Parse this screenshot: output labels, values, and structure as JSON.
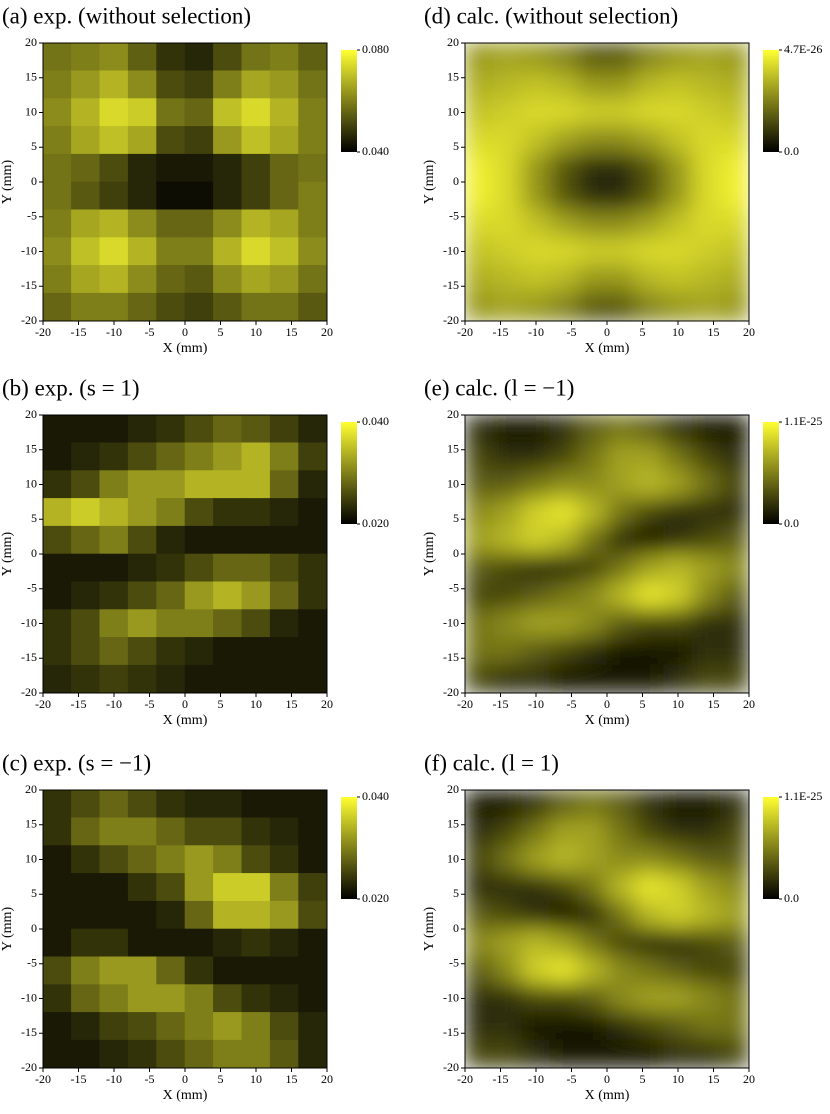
{
  "chart_data": [
    {
      "type": "heatmap",
      "title": "(a) exp. (without selection)",
      "xlabel": "X (mm)",
      "ylabel": "Y (mm)",
      "xlim": [
        -20,
        20
      ],
      "ylim": [
        -20,
        20
      ],
      "xticks": [
        -20,
        -15,
        -10,
        -5,
        0,
        5,
        10,
        15,
        20
      ],
      "yticks": [
        -20,
        -15,
        -10,
        -5,
        0,
        5,
        10,
        15,
        20
      ],
      "zlim": [
        0.04,
        0.08
      ],
      "zticks": [
        {
          "value": 0.04,
          "label": "0.040"
        },
        {
          "value": 0.08,
          "label": "0.080"
        }
      ],
      "colors": [
        "#000000",
        "#ffff33"
      ],
      "smooth": false,
      "z": [
        [
          0.058,
          0.06,
          0.062,
          0.055,
          0.048,
          0.046,
          0.052,
          0.058,
          0.06,
          0.055
        ],
        [
          0.06,
          0.064,
          0.068,
          0.062,
          0.052,
          0.05,
          0.06,
          0.066,
          0.064,
          0.058
        ],
        [
          0.062,
          0.068,
          0.074,
          0.072,
          0.058,
          0.056,
          0.07,
          0.074,
          0.068,
          0.06
        ],
        [
          0.06,
          0.066,
          0.07,
          0.066,
          0.052,
          0.05,
          0.064,
          0.07,
          0.066,
          0.06
        ],
        [
          0.058,
          0.056,
          0.052,
          0.046,
          0.044,
          0.044,
          0.046,
          0.05,
          0.056,
          0.058
        ],
        [
          0.058,
          0.054,
          0.05,
          0.046,
          0.042,
          0.042,
          0.046,
          0.05,
          0.056,
          0.06
        ],
        [
          0.06,
          0.066,
          0.068,
          0.062,
          0.056,
          0.056,
          0.062,
          0.068,
          0.066,
          0.06
        ],
        [
          0.062,
          0.07,
          0.074,
          0.068,
          0.06,
          0.06,
          0.068,
          0.074,
          0.07,
          0.062
        ],
        [
          0.06,
          0.066,
          0.068,
          0.062,
          0.056,
          0.054,
          0.062,
          0.066,
          0.064,
          0.058
        ],
        [
          0.056,
          0.06,
          0.06,
          0.056,
          0.052,
          0.05,
          0.054,
          0.058,
          0.058,
          0.054
        ]
      ]
    },
    {
      "type": "heatmap",
      "title": "(b) exp. (s = 1)",
      "xlabel": "X (mm)",
      "ylabel": "Y (mm)",
      "xlim": [
        -20,
        20
      ],
      "ylim": [
        -20,
        20
      ],
      "xticks": [
        -20,
        -15,
        -10,
        -5,
        0,
        5,
        10,
        15,
        20
      ],
      "yticks": [
        -20,
        -15,
        -10,
        -5,
        0,
        5,
        10,
        15,
        20
      ],
      "zlim": [
        0.02,
        0.04
      ],
      "zticks": [
        {
          "value": 0.02,
          "label": "0.020"
        },
        {
          "value": 0.04,
          "label": "0.040"
        }
      ],
      "colors": [
        "#000000",
        "#ffff33"
      ],
      "smooth": false,
      "z": [
        [
          0.022,
          0.022,
          0.022,
          0.023,
          0.024,
          0.026,
          0.028,
          0.027,
          0.025,
          0.023
        ],
        [
          0.022,
          0.023,
          0.024,
          0.026,
          0.028,
          0.03,
          0.032,
          0.034,
          0.03,
          0.025
        ],
        [
          0.024,
          0.026,
          0.03,
          0.032,
          0.032,
          0.034,
          0.034,
          0.034,
          0.028,
          0.023
        ],
        [
          0.034,
          0.036,
          0.034,
          0.032,
          0.03,
          0.026,
          0.024,
          0.024,
          0.023,
          0.022
        ],
        [
          0.026,
          0.028,
          0.03,
          0.026,
          0.023,
          0.022,
          0.022,
          0.022,
          0.022,
          0.022
        ],
        [
          0.022,
          0.022,
          0.022,
          0.023,
          0.024,
          0.026,
          0.028,
          0.028,
          0.026,
          0.024
        ],
        [
          0.022,
          0.023,
          0.024,
          0.026,
          0.028,
          0.032,
          0.034,
          0.032,
          0.028,
          0.024
        ],
        [
          0.024,
          0.026,
          0.03,
          0.032,
          0.03,
          0.03,
          0.028,
          0.026,
          0.023,
          0.022
        ],
        [
          0.024,
          0.026,
          0.028,
          0.026,
          0.024,
          0.023,
          0.022,
          0.022,
          0.022,
          0.022
        ],
        [
          0.023,
          0.024,
          0.025,
          0.024,
          0.023,
          0.022,
          0.022,
          0.022,
          0.022,
          0.022
        ]
      ]
    },
    {
      "type": "heatmap",
      "title": "(c) exp. (s = −1)",
      "xlabel": "X (mm)",
      "ylabel": "Y (mm)",
      "xlim": [
        -20,
        20
      ],
      "ylim": [
        -20,
        20
      ],
      "xticks": [
        -20,
        -15,
        -10,
        -5,
        0,
        5,
        10,
        15,
        20
      ],
      "yticks": [
        -20,
        -15,
        -10,
        -5,
        0,
        5,
        10,
        15,
        20
      ],
      "zlim": [
        0.02,
        0.04
      ],
      "zticks": [
        {
          "value": 0.02,
          "label": "0.020"
        },
        {
          "value": 0.04,
          "label": "0.040"
        }
      ],
      "colors": [
        "#000000",
        "#ffff33"
      ],
      "smooth": false,
      "z": [
        [
          0.024,
          0.026,
          0.028,
          0.026,
          0.024,
          0.023,
          0.023,
          0.022,
          0.022,
          0.022
        ],
        [
          0.024,
          0.028,
          0.03,
          0.03,
          0.028,
          0.026,
          0.026,
          0.024,
          0.023,
          0.022
        ],
        [
          0.022,
          0.024,
          0.026,
          0.028,
          0.03,
          0.032,
          0.03,
          0.026,
          0.024,
          0.022
        ],
        [
          0.022,
          0.022,
          0.022,
          0.024,
          0.026,
          0.032,
          0.036,
          0.036,
          0.03,
          0.025
        ],
        [
          0.022,
          0.022,
          0.022,
          0.022,
          0.023,
          0.028,
          0.034,
          0.034,
          0.032,
          0.026
        ],
        [
          0.022,
          0.024,
          0.024,
          0.022,
          0.022,
          0.022,
          0.023,
          0.024,
          0.023,
          0.022
        ],
        [
          0.026,
          0.03,
          0.032,
          0.032,
          0.028,
          0.024,
          0.022,
          0.022,
          0.022,
          0.022
        ],
        [
          0.024,
          0.028,
          0.03,
          0.032,
          0.032,
          0.03,
          0.026,
          0.024,
          0.023,
          0.022
        ],
        [
          0.022,
          0.023,
          0.025,
          0.026,
          0.028,
          0.03,
          0.032,
          0.03,
          0.026,
          0.023
        ],
        [
          0.022,
          0.022,
          0.023,
          0.024,
          0.026,
          0.028,
          0.03,
          0.03,
          0.027,
          0.023
        ]
      ]
    },
    {
      "type": "heatmap",
      "title": "(d) calc. (without selection)",
      "xlabel": "X (mm)",
      "ylabel": "Y (mm)",
      "xlim": [
        -20,
        20
      ],
      "ylim": [
        -20,
        20
      ],
      "xticks": [
        -20,
        -15,
        -10,
        -5,
        0,
        5,
        10,
        15,
        20
      ],
      "yticks": [
        -20,
        -15,
        -10,
        -5,
        0,
        5,
        10,
        15,
        20
      ],
      "zlim": [
        0,
        4.7e-26
      ],
      "zticks": [
        {
          "value": 0,
          "label": "0.0"
        },
        {
          "value": 4.7e-26,
          "label": "4.7E-26"
        }
      ],
      "colors": [
        "#000000",
        "#ffff33"
      ],
      "smooth": true,
      "z": [
        [
          2.8e-26,
          3e-26,
          2.8e-26,
          2.4e-26,
          1.6e-26,
          1.6e-26,
          2.4e-26,
          2.8e-26,
          3e-26,
          2.8e-26
        ],
        [
          3.2e-26,
          3.4e-26,
          3.6e-26,
          3.4e-26,
          2.8e-26,
          2.8e-26,
          3.4e-26,
          3.6e-26,
          3.4e-26,
          3.2e-26
        ],
        [
          3.6e-26,
          3.8e-26,
          4e-26,
          4e-26,
          3.8e-26,
          3.8e-26,
          4e-26,
          4e-26,
          3.8e-26,
          3.6e-26
        ],
        [
          4e-26,
          4e-26,
          3.6e-26,
          3e-26,
          2.6e-26,
          2.6e-26,
          3e-26,
          3.6e-26,
          4e-26,
          4e-26
        ],
        [
          4.4e-26,
          4e-26,
          2.8e-26,
          1.6e-26,
          8e-27,
          8e-27,
          1.6e-26,
          2.8e-26,
          4e-26,
          4.4e-26
        ],
        [
          4.4e-26,
          4e-26,
          2.8e-26,
          1.6e-26,
          8e-27,
          8e-27,
          1.6e-26,
          2.8e-26,
          4e-26,
          4.4e-26
        ],
        [
          4e-26,
          4e-26,
          3.6e-26,
          3e-26,
          2.6e-26,
          2.6e-26,
          3e-26,
          3.6e-26,
          4e-26,
          4e-26
        ],
        [
          3.6e-26,
          3.8e-26,
          4e-26,
          4e-26,
          3.8e-26,
          3.8e-26,
          4e-26,
          4e-26,
          3.8e-26,
          3.6e-26
        ],
        [
          3.2e-26,
          3.4e-26,
          3.6e-26,
          3.4e-26,
          2.8e-26,
          2.8e-26,
          3.4e-26,
          3.6e-26,
          3.4e-26,
          3.2e-26
        ],
        [
          2.8e-26,
          3e-26,
          2.8e-26,
          2.4e-26,
          1.6e-26,
          1.6e-26,
          2.4e-26,
          2.8e-26,
          3e-26,
          2.8e-26
        ]
      ]
    },
    {
      "type": "heatmap",
      "title": "(e) calc. (l = −1)",
      "xlabel": "X (mm)",
      "ylabel": "Y (mm)",
      "xlim": [
        -20,
        20
      ],
      "ylim": [
        -20,
        20
      ],
      "xticks": [
        -20,
        -15,
        -10,
        -5,
        0,
        5,
        10,
        15,
        20
      ],
      "yticks": [
        -20,
        -15,
        -10,
        -5,
        0,
        5,
        10,
        15,
        20
      ],
      "zlim": [
        0,
        1.1e-25
      ],
      "zticks": [
        {
          "value": 0,
          "label": "0.0"
        },
        {
          "value": 1.1e-25,
          "label": "1.1E-25"
        }
      ],
      "colors": [
        "#000000",
        "#ffff33"
      ],
      "smooth": true,
      "z": [
        [
          2e-26,
          1e-26,
          1e-26,
          2e-26,
          4e-26,
          5e-26,
          4e-26,
          2e-26,
          1e-26,
          1e-26
        ],
        [
          3e-26,
          2e-26,
          2e-26,
          3e-26,
          5e-26,
          7e-26,
          7e-26,
          5e-26,
          3e-26,
          2e-26
        ],
        [
          4e-26,
          4e-26,
          5e-26,
          6e-26,
          6e-26,
          7e-26,
          8e-26,
          7e-26,
          5e-26,
          3e-26
        ],
        [
          6e-26,
          7e-26,
          9e-26,
          1e-25,
          8e-26,
          5e-26,
          3e-26,
          2e-26,
          2e-26,
          2e-26
        ],
        [
          7e-26,
          8e-26,
          9e-26,
          8e-26,
          5e-26,
          2e-26,
          1e-26,
          2e-26,
          3e-26,
          4e-26
        ],
        [
          4e-26,
          3e-26,
          2e-26,
          2e-26,
          3e-26,
          5e-26,
          7e-26,
          8e-26,
          7e-26,
          6e-26
        ],
        [
          3e-26,
          3e-26,
          4e-26,
          5e-26,
          6e-26,
          8e-26,
          1e-25,
          9e-26,
          6e-26,
          4e-26
        ],
        [
          5e-26,
          6e-26,
          7e-26,
          7e-26,
          6e-26,
          4e-26,
          3e-26,
          3e-26,
          2e-26,
          2e-26
        ],
        [
          5e-26,
          5e-26,
          4e-26,
          3e-26,
          2e-26,
          1e-26,
          1e-26,
          1e-26,
          2e-26,
          2e-26
        ],
        [
          3e-26,
          2e-26,
          2e-26,
          1e-26,
          1e-26,
          1e-26,
          1e-26,
          2e-26,
          3e-26,
          3e-26
        ]
      ]
    },
    {
      "type": "heatmap",
      "title": "(f) calc. (l = 1)",
      "xlabel": "X (mm)",
      "ylabel": "Y (mm)",
      "xlim": [
        -20,
        20
      ],
      "ylim": [
        -20,
        20
      ],
      "xticks": [
        -20,
        -15,
        -10,
        -5,
        0,
        5,
        10,
        15,
        20
      ],
      "yticks": [
        -20,
        -15,
        -10,
        -5,
        0,
        5,
        10,
        15,
        20
      ],
      "zlim": [
        0,
        1.1e-25
      ],
      "zticks": [
        {
          "value": 0,
          "label": "0.0"
        },
        {
          "value": 1.1e-25,
          "label": "1.1E-25"
        }
      ],
      "colors": [
        "#000000",
        "#ffff33"
      ],
      "smooth": true,
      "z": [
        [
          1e-26,
          1e-26,
          2e-26,
          4e-26,
          5e-26,
          4e-26,
          2e-26,
          1e-26,
          1e-26,
          2e-26
        ],
        [
          2e-26,
          3e-26,
          5e-26,
          7e-26,
          7e-26,
          5e-26,
          3e-26,
          2e-26,
          2e-26,
          3e-26
        ],
        [
          3e-26,
          5e-26,
          7e-26,
          8e-26,
          7e-26,
          6e-26,
          6e-26,
          5e-26,
          4e-26,
          4e-26
        ],
        [
          2e-26,
          2e-26,
          2e-26,
          3e-26,
          5e-26,
          8e-26,
          1e-25,
          9e-26,
          7e-26,
          6e-26
        ],
        [
          4e-26,
          3e-26,
          2e-26,
          1e-26,
          2e-26,
          5e-26,
          8e-26,
          9e-26,
          8e-26,
          7e-26
        ],
        [
          6e-26,
          7e-26,
          8e-26,
          7e-26,
          5e-26,
          3e-26,
          2e-26,
          2e-26,
          3e-26,
          4e-26
        ],
        [
          4e-26,
          6e-26,
          9e-26,
          1e-25,
          8e-26,
          6e-26,
          5e-26,
          4e-26,
          3e-26,
          3e-26
        ],
        [
          2e-26,
          2e-26,
          3e-26,
          3e-26,
          4e-26,
          6e-26,
          7e-26,
          7e-26,
          6e-26,
          5e-26
        ],
        [
          2e-26,
          2e-26,
          1e-26,
          1e-26,
          1e-26,
          2e-26,
          3e-26,
          4e-26,
          5e-26,
          5e-26
        ],
        [
          3e-26,
          3e-26,
          2e-26,
          1e-26,
          1e-26,
          1e-26,
          1e-26,
          2e-26,
          2e-26,
          3e-26
        ]
      ]
    }
  ]
}
